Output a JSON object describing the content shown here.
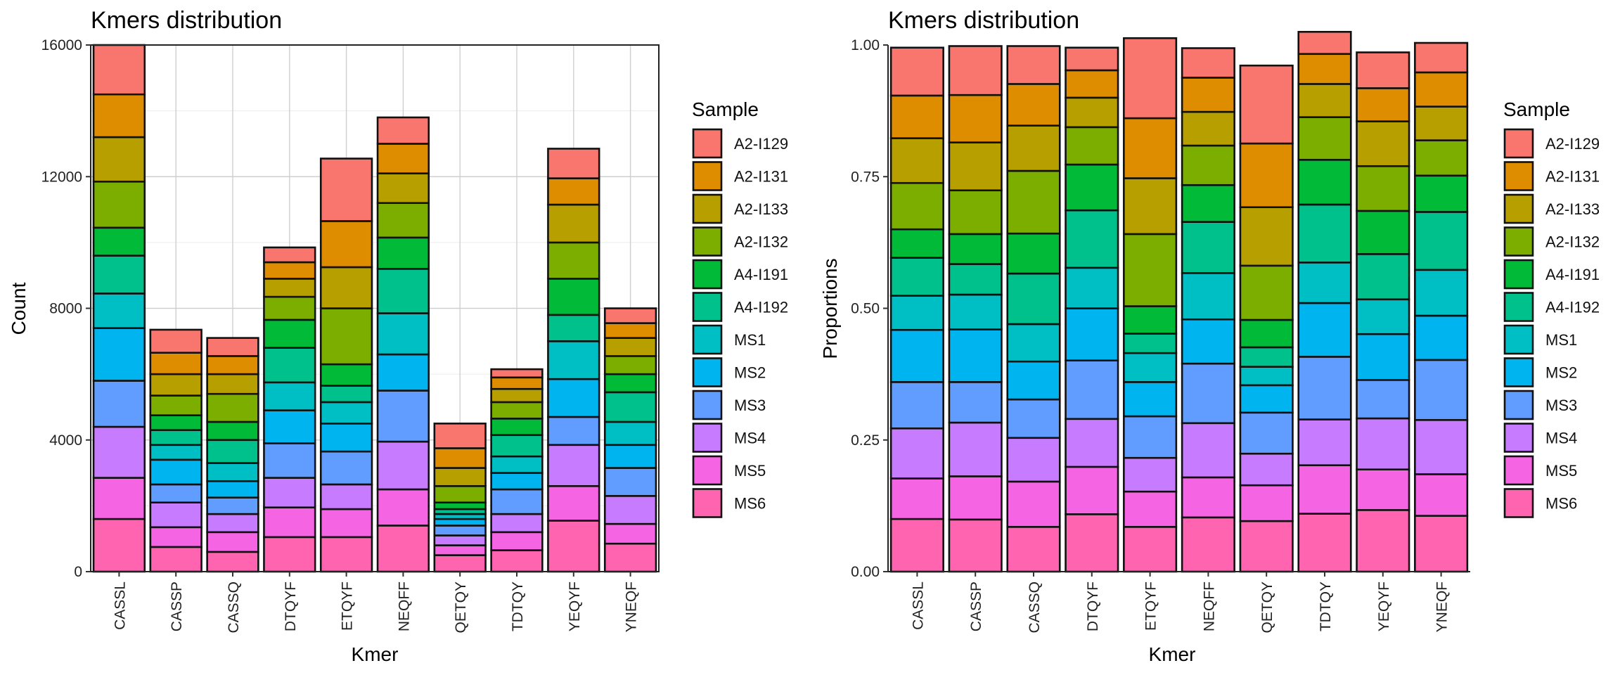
{
  "samples": [
    "A2-I129",
    "A2-I131",
    "A2-I133",
    "A2-I132",
    "A4-I191",
    "A4-I192",
    "MS1",
    "MS2",
    "MS3",
    "MS4",
    "MS5",
    "MS6"
  ],
  "colors": [
    "#F8766D",
    "#DE8C00",
    "#B79F00",
    "#7CAE00",
    "#00BA38",
    "#00C08B",
    "#00BFC4",
    "#00B4F0",
    "#619CFF",
    "#C77CFF",
    "#F564E3",
    "#FF64B0"
  ],
  "legend_title": "Sample",
  "chart_data": [
    {
      "type": "bar",
      "stacked": true,
      "title": "Kmers distribution",
      "xlabel": "Kmer",
      "ylabel": "Count",
      "ylim": [
        0,
        16000
      ],
      "yticks": [
        0,
        4000,
        8000,
        12000,
        16000
      ],
      "ytick_labels": [
        "0",
        "4000",
        "8000",
        "12000",
        "16000"
      ],
      "grid": true,
      "legend": "right",
      "categories": [
        "CASSL",
        "CASSP",
        "CASSQ",
        "DTQYF",
        "ETQYF",
        "NEQFF",
        "QETQY",
        "TDTQY",
        "YEQYF",
        "YNEQF"
      ],
      "series": [
        {
          "name": "A2-I129",
          "values": [
            1500,
            700,
            550,
            450,
            1900,
            800,
            750,
            250,
            900,
            450
          ]
        },
        {
          "name": "A2-I131",
          "values": [
            1300,
            650,
            550,
            500,
            1400,
            900,
            600,
            350,
            800,
            450
          ]
        },
        {
          "name": "A2-I133",
          "values": [
            1350,
            650,
            600,
            550,
            1250,
            900,
            550,
            400,
            1150,
            550
          ]
        },
        {
          "name": "A2-I132",
          "values": [
            1400,
            600,
            850,
            700,
            1700,
            1050,
            500,
            500,
            1100,
            550
          ]
        },
        {
          "name": "A4-I191",
          "values": [
            850,
            450,
            550,
            850,
            650,
            950,
            200,
            500,
            1100,
            550
          ]
        },
        {
          "name": "A4-I192",
          "values": [
            1150,
            450,
            700,
            1050,
            500,
            1350,
            150,
            650,
            800,
            900
          ]
        },
        {
          "name": "MS1",
          "values": [
            1050,
            450,
            550,
            850,
            650,
            1250,
            150,
            500,
            1150,
            700
          ]
        },
        {
          "name": "MS2",
          "values": [
            1600,
            750,
            500,
            1000,
            850,
            1100,
            200,
            500,
            1150,
            700
          ]
        },
        {
          "name": "MS3",
          "values": [
            1400,
            550,
            500,
            1050,
            1000,
            1550,
            300,
            750,
            850,
            850
          ]
        },
        {
          "name": "MS4",
          "values": [
            1550,
            750,
            550,
            900,
            750,
            1450,
            300,
            550,
            1250,
            850
          ]
        },
        {
          "name": "MS5",
          "values": [
            1250,
            600,
            600,
            900,
            850,
            1100,
            300,
            550,
            1050,
            600
          ]
        },
        {
          "name": "MS6",
          "values": [
            1600,
            750,
            600,
            1050,
            1050,
            1400,
            500,
            650,
            1550,
            850
          ]
        }
      ]
    },
    {
      "type": "bar",
      "stacked": true,
      "normalized": true,
      "title": "Kmers distribution",
      "xlabel": "Kmer",
      "ylabel": "Proportions",
      "ylim": [
        0,
        1
      ],
      "yticks": [
        0,
        0.25,
        0.5,
        0.75,
        1
      ],
      "ytick_labels": [
        "0.00",
        "0.25",
        "0.50",
        "0.75",
        "1.00"
      ],
      "grid": false,
      "legend": "right",
      "categories": [
        "CASSL",
        "CASSP",
        "CASSQ",
        "DTQYF",
        "ETQYF",
        "NEQFF",
        "QETQY",
        "TDTQY",
        "YEQYF",
        "YNEQF"
      ],
      "series": [
        {
          "name": "A2-I129",
          "values": [
            0.091,
            0.093,
            0.072,
            0.043,
            0.152,
            0.056,
            0.148,
            0.042,
            0.068,
            0.056
          ]
        },
        {
          "name": "A2-I131",
          "values": [
            0.081,
            0.09,
            0.079,
            0.052,
            0.114,
            0.065,
            0.121,
            0.057,
            0.063,
            0.065
          ]
        },
        {
          "name": "A2-I133",
          "values": [
            0.085,
            0.091,
            0.086,
            0.056,
            0.106,
            0.064,
            0.111,
            0.063,
            0.085,
            0.064
          ]
        },
        {
          "name": "A2-I132",
          "values": [
            0.088,
            0.083,
            0.119,
            0.071,
            0.137,
            0.075,
            0.103,
            0.081,
            0.085,
            0.067
          ]
        },
        {
          "name": "A4-I191",
          "values": [
            0.054,
            0.057,
            0.076,
            0.087,
            0.052,
            0.07,
            0.052,
            0.085,
            0.082,
            0.069
          ]
        },
        {
          "name": "A4-I192",
          "values": [
            0.072,
            0.058,
            0.096,
            0.109,
            0.037,
            0.097,
            0.037,
            0.11,
            0.086,
            0.11
          ]
        },
        {
          "name": "MS1",
          "values": [
            0.065,
            0.066,
            0.071,
            0.077,
            0.055,
            0.088,
            0.035,
            0.077,
            0.066,
            0.087
          ]
        },
        {
          "name": "MS2",
          "values": [
            0.099,
            0.1,
            0.072,
            0.099,
            0.065,
            0.084,
            0.052,
            0.102,
            0.087,
            0.084
          ]
        },
        {
          "name": "MS3",
          "values": [
            0.088,
            0.077,
            0.073,
            0.111,
            0.079,
            0.113,
            0.078,
            0.119,
            0.073,
            0.114
          ]
        },
        {
          "name": "MS4",
          "values": [
            0.095,
            0.102,
            0.083,
            0.091,
            0.064,
            0.103,
            0.06,
            0.087,
            0.097,
            0.103
          ]
        },
        {
          "name": "MS5",
          "values": [
            0.077,
            0.082,
            0.086,
            0.09,
            0.067,
            0.076,
            0.068,
            0.092,
            0.077,
            0.079
          ]
        },
        {
          "name": "MS6",
          "values": [
            0.1,
            0.099,
            0.085,
            0.109,
            0.085,
            0.103,
            0.096,
            0.11,
            0.117,
            0.106
          ]
        }
      ]
    }
  ]
}
